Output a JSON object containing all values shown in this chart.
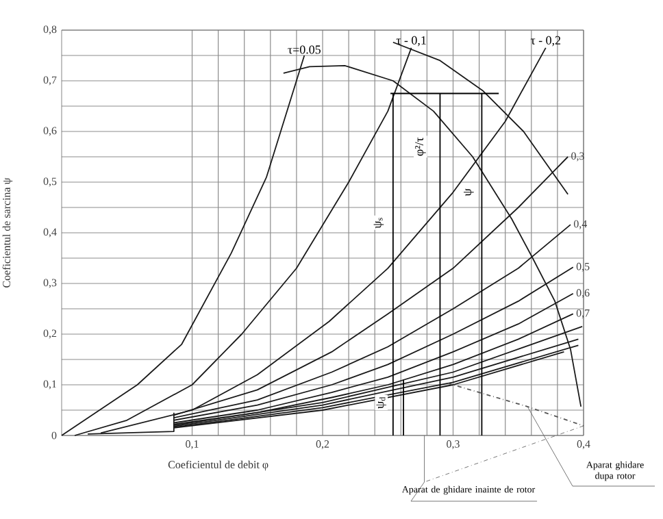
{
  "chart_data": {
    "type": "line",
    "xlabel": "Coeficientul de debit φ",
    "ylabel": "Coeficientul de sarcina ψ",
    "xlim": [
      0,
      0.4
    ],
    "ylim": [
      0,
      0.8
    ],
    "xticks": [
      {
        "value": 0.1,
        "label": "0,1"
      },
      {
        "value": 0.2,
        "label": "0,2"
      },
      {
        "value": 0.3,
        "label": "0,3"
      },
      {
        "value": 0.4,
        "label": "0,4"
      }
    ],
    "yticks": [
      0,
      {
        "value": 0.1,
        "label": "0,1"
      },
      {
        "value": 0.2,
        "label": "0,2"
      },
      {
        "value": 0.3,
        "label": "0,3"
      },
      {
        "value": 0.4,
        "label": "0,4"
      },
      {
        "value": 0.5,
        "label": "0,5"
      },
      {
        "value": 0.6,
        "label": "0,6"
      },
      {
        "value": 0.7,
        "label": "0,7"
      },
      {
        "value": 0.8,
        "label": "0,8"
      }
    ],
    "grid": true,
    "marker": "none",
    "series": [
      {
        "name": "τ=0.05",
        "color": "#1a1a1a",
        "x": [
          0,
          0.058,
          0.092,
          0.13,
          0.157,
          0.186
        ],
        "values": [
          0,
          0.1,
          0.18,
          0.36,
          0.51,
          0.75
        ]
      },
      {
        "name": "τ - 0,1",
        "color": "#1a1a1a",
        "x": [
          0.01,
          0.05,
          0.1,
          0.138,
          0.18,
          0.22,
          0.25,
          0.268
        ],
        "values": [
          0,
          0.03,
          0.1,
          0.2,
          0.33,
          0.5,
          0.64,
          0.765
        ]
      },
      {
        "name": "τ - 0,2",
        "color": "#1a1a1a",
        "x": [
          0.03,
          0.1,
          0.15,
          0.205,
          0.25,
          0.3,
          0.34,
          0.371
        ],
        "values": [
          0.005,
          0.05,
          0.12,
          0.225,
          0.33,
          0.48,
          0.62,
          0.765
        ]
      },
      {
        "name": "0,3",
        "color": "#1a1a1a",
        "x": [
          0.086,
          0.15,
          0.207,
          0.25,
          0.3,
          0.35,
          0.388
        ],
        "values": [
          0.04,
          0.09,
          0.165,
          0.24,
          0.33,
          0.45,
          0.55
        ]
      },
      {
        "name": "0,4",
        "color": "#1a1a1a",
        "x": [
          0.086,
          0.15,
          0.207,
          0.25,
          0.3,
          0.35,
          0.39
        ],
        "values": [
          0.035,
          0.07,
          0.125,
          0.175,
          0.25,
          0.33,
          0.416
        ]
      },
      {
        "name": "0,5",
        "color": "#1a1a1a",
        "x": [
          0.086,
          0.15,
          0.207,
          0.25,
          0.3,
          0.35,
          0.392
        ],
        "values": [
          0.03,
          0.06,
          0.1,
          0.14,
          0.2,
          0.265,
          0.332
        ]
      },
      {
        "name": "0,6",
        "color": "#1a1a1a",
        "x": [
          0.086,
          0.15,
          0.207,
          0.25,
          0.3,
          0.35,
          0.392
        ],
        "values": [
          0.025,
          0.05,
          0.085,
          0.115,
          0.165,
          0.22,
          0.28
        ]
      },
      {
        "name": "0,7",
        "color": "#1a1a1a",
        "x": [
          0.086,
          0.15,
          0.207,
          0.25,
          0.3,
          0.35,
          0.392
        ],
        "values": [
          0.022,
          0.045,
          0.075,
          0.1,
          0.14,
          0.19,
          0.24
        ]
      },
      {
        "color": "#1a1a1a",
        "x": [
          0.086,
          0.2,
          0.3,
          0.399
        ],
        "values": [
          0.02,
          0.065,
          0.125,
          0.215
        ]
      },
      {
        "color": "#1a1a1a",
        "x": [
          0.086,
          0.2,
          0.3,
          0.396
        ],
        "values": [
          0.018,
          0.06,
          0.115,
          0.19
        ]
      },
      {
        "color": "#1a1a1a",
        "x": [
          0.086,
          0.2,
          0.3,
          0.396
        ],
        "values": [
          0.016,
          0.055,
          0.105,
          0.178
        ]
      },
      {
        "color": "#1a1a1a",
        "x": [
          0.086,
          0.2,
          0.3,
          0.385
        ],
        "values": [
          0.015,
          0.05,
          0.1,
          0.165
        ]
      },
      {
        "color": "#1a1a1a",
        "x": [
          0.02,
          0.086,
          0.086
        ],
        "values": [
          0.003,
          0.008,
          0.045
        ]
      },
      {
        "color": "#1a1a1a",
        "x": [
          0.17,
          0.19,
          0.217,
          0.254,
          0.285,
          0.315,
          0.345,
          0.361,
          0.378,
          0.39,
          0.398
        ],
        "values": [
          0.715,
          0.728,
          0.73,
          0.7,
          0.64,
          0.55,
          0.427,
          0.35,
          0.265,
          0.17,
          0.057
        ]
      },
      {
        "color": "#1a1a1a",
        "x": [
          0.254,
          0.29,
          0.323,
          0.354,
          0.388
        ],
        "values": [
          0.776,
          0.74,
          0.68,
          0.6,
          0.476
        ]
      },
      {
        "color": "#555555",
        "line_style": "dashed",
        "x": [
          0.296,
          0.357,
          0.4
        ],
        "values": [
          0.103,
          0.057,
          0.019
        ]
      },
      {
        "color": "#000000",
        "x": [
          0.252,
          0.335
        ],
        "values": [
          0.675,
          0.675
        ]
      },
      {
        "color": "#000000",
        "x": [
          0.254,
          0.254
        ],
        "values": [
          0.675,
          0
        ]
      },
      {
        "color": "#000000",
        "x": [
          0.29,
          0.29
        ],
        "values": [
          0.675,
          0
        ]
      },
      {
        "color": "#000000",
        "x": [
          0.322,
          0.322
        ],
        "values": [
          0.675,
          0
        ]
      },
      {
        "color": "#000000",
        "x": [
          0.262,
          0.262
        ],
        "values": [
          0.11,
          0
        ]
      }
    ],
    "annotations": [
      {
        "text": "ψ$_{s}$",
        "x": 0.243,
        "y": 0.42
      },
      {
        "text": "φ²/τ",
        "x": 0.275,
        "y": 0.57
      },
      {
        "text": "ψ",
        "x": 0.312,
        "y": 0.48
      },
      {
        "text": "ψ$_{d}$",
        "x": 0.245,
        "y": 0.065
      },
      {
        "text": "Aparat ghidare dupa rotor",
        "x": 0.357,
        "y": 0.057
      },
      {
        "text": "Aparat de ghidare inainte de rotor",
        "x": 0.4,
        "y": 0.019
      }
    ]
  }
}
